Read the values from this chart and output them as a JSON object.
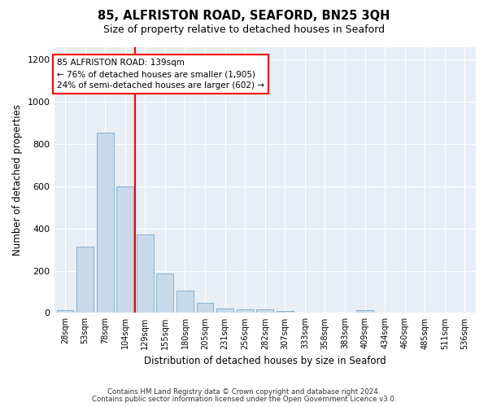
{
  "title": "85, ALFRISTON ROAD, SEAFORD, BN25 3QH",
  "subtitle": "Size of property relative to detached houses in Seaford",
  "xlabel": "Distribution of detached houses by size in Seaford",
  "ylabel": "Number of detached properties",
  "bar_color": "#c8daea",
  "bar_edgecolor": "#7aaac8",
  "categories": [
    "28sqm",
    "53sqm",
    "78sqm",
    "104sqm",
    "129sqm",
    "155sqm",
    "180sqm",
    "205sqm",
    "231sqm",
    "256sqm",
    "282sqm",
    "307sqm",
    "333sqm",
    "358sqm",
    "383sqm",
    "409sqm",
    "434sqm",
    "460sqm",
    "485sqm",
    "511sqm",
    "536sqm"
  ],
  "values": [
    15,
    315,
    855,
    600,
    370,
    185,
    105,
    48,
    22,
    18,
    18,
    10,
    0,
    0,
    0,
    12,
    0,
    0,
    0,
    0,
    0
  ],
  "ylim": [
    0,
    1260
  ],
  "yticks": [
    0,
    200,
    400,
    600,
    800,
    1000,
    1200
  ],
  "vline_pos": 3.5,
  "vline_label": "85 ALFRISTON ROAD: 139sqm",
  "annotation_line1": "← 76% of detached houses are smaller (1,905)",
  "annotation_line2": "24% of semi-detached houses are larger (602) →",
  "footer1": "Contains HM Land Registry data © Crown copyright and database right 2024.",
  "footer2": "Contains public sector information licensed under the Open Government Licence v3.0.",
  "bg_color": "#ffffff",
  "plot_bg_color": "#e8eef5"
}
